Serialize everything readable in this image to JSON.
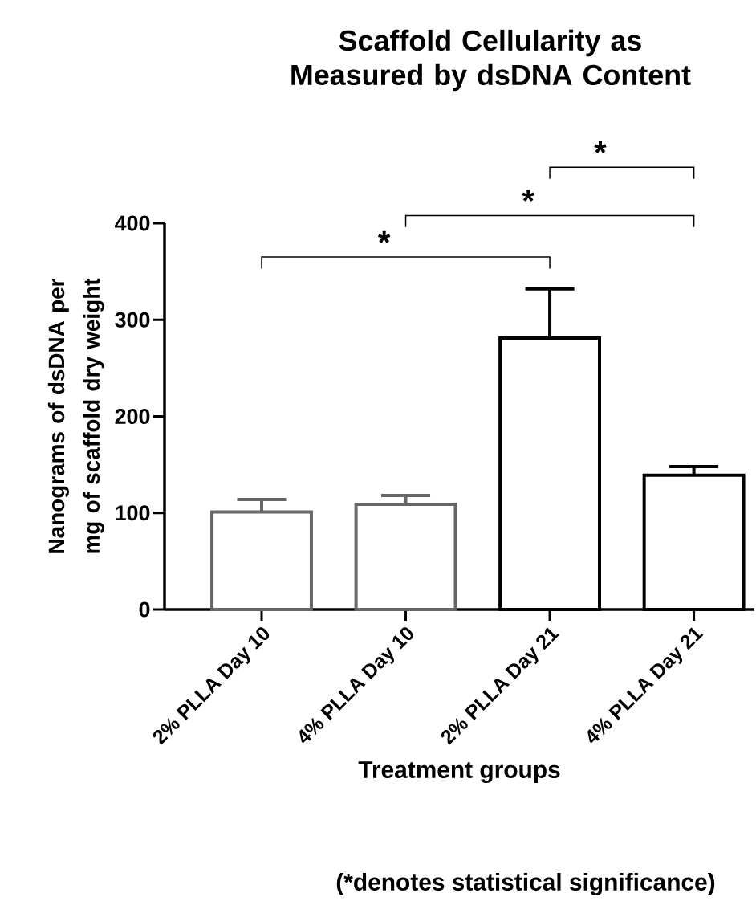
{
  "chart_data": {
    "type": "bar",
    "title": "Scaffold Cellularity as Measured by dsDNA Content",
    "xlabel": "Treatment groups",
    "ylabel": "Nanograms of dsDNA per mg of scaffold dry weight",
    "categories": [
      "2% PLLA Day 10",
      "4% PLLA Day 10",
      "2% PLLA Day 21",
      "4% PLLA Day 21"
    ],
    "values": [
      101,
      109,
      281,
      139
    ],
    "colors": [
      "#666666",
      "#666666",
      "#000000",
      "#000000"
    ],
    "errors": [
      [
        101,
        114
      ],
      [
        109,
        118
      ],
      [
        281,
        332
      ],
      [
        139,
        148
      ]
    ],
    "ylim": [
      0,
      400
    ],
    "yticks": [
      0,
      100,
      200,
      300,
      400
    ],
    "annotations": [
      "*",
      "*",
      "*",
      "(*denotes statistical significance)"
    ]
  }
}
